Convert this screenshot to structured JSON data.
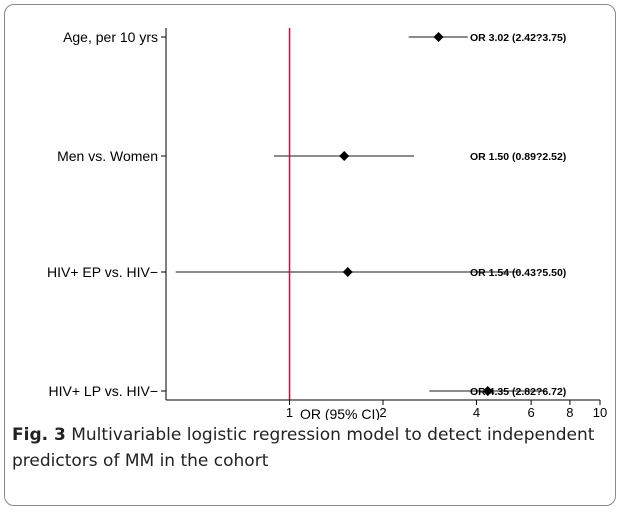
{
  "chart_data": {
    "type": "forest",
    "xlabel": "OR (95% CI)",
    "xscale": "log",
    "xlim": [
      0.4,
      10
    ],
    "xticks": [
      1,
      2,
      4,
      6,
      8,
      10
    ],
    "reference_line": 1,
    "reference_color": "#c0143c",
    "rows": [
      {
        "label": "Age, per 10 yrs",
        "or": 3.02,
        "lo": 2.42,
        "hi": 3.75,
        "annotation": "OR 3.02 (2.42?3.75)"
      },
      {
        "label": "Men vs. Women",
        "or": 1.5,
        "lo": 0.89,
        "hi": 2.52,
        "annotation": "OR 1.50 (0.89?2.52)"
      },
      {
        "label": "HIV+ EP vs. HIV−",
        "or": 1.54,
        "lo": 0.43,
        "hi": 5.5,
        "annotation": "OR 1.54 (0.43?5.50)"
      },
      {
        "label": "HIV+ LP vs. HIV−",
        "or": 4.35,
        "lo": 2.82,
        "hi": 6.72,
        "annotation": "OR 4.35 (2.82?6.72)"
      }
    ]
  },
  "caption": {
    "fig_label": "Fig. 3",
    "text": "Multivariable logistic regression model to detect independent predictors of MM in the cohort"
  }
}
